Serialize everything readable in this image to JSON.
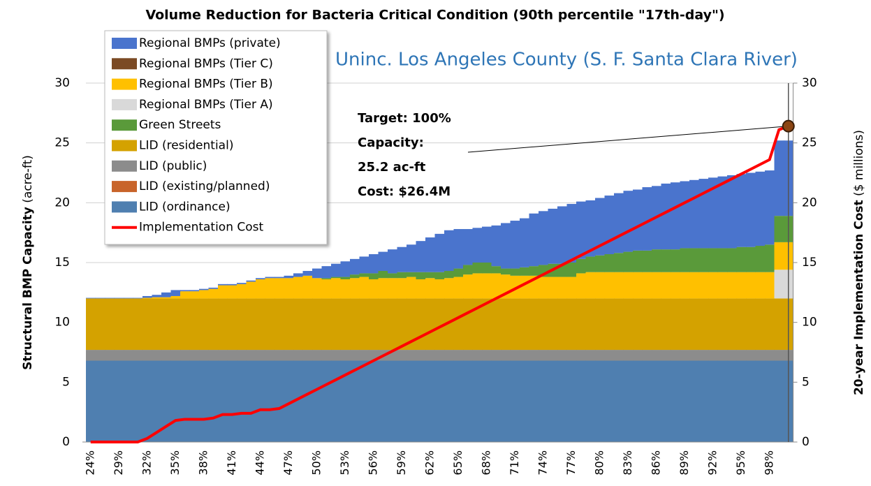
{
  "chart_data": {
    "type": "stacked-bar-line",
    "title": "Volume Reduction for Bacteria Critical Condition (90th percentile \"17th-day\")",
    "subtitle": "Uninc. Los Angeles County (S. F. Santa Clara River)",
    "y_label": "Structural BMP Capacity",
    "y_label_unit": "(acre-ft)",
    "y2_label": "20-year Implementation Cost",
    "y2_label_unit": "($ millions)",
    "annotations": [
      "Target: 100%",
      "Capacity:",
      "25.2 ac-ft",
      "Cost: $26.4M"
    ],
    "categories": [
      "24%",
      null,
      null,
      "29%",
      null,
      null,
      "32%",
      null,
      null,
      "35%",
      null,
      null,
      "38%",
      null,
      null,
      "41%",
      null,
      null,
      "44%",
      null,
      null,
      "47%",
      null,
      null,
      "50%",
      null,
      null,
      "53%",
      null,
      null,
      "56%",
      null,
      null,
      "59%",
      null,
      null,
      "62%",
      null,
      null,
      "65%",
      null,
      null,
      "68%",
      null,
      null,
      "71%",
      null,
      null,
      "74%",
      null,
      null,
      "77%",
      null,
      null,
      "80%",
      null,
      null,
      "83%",
      null,
      null,
      "86%",
      null,
      null,
      "89%",
      null,
      null,
      "92%",
      null,
      null,
      "95%",
      null,
      null,
      "98%",
      null,
      null
    ],
    "ylim": [
      0,
      30
    ],
    "yticks": [
      0,
      5,
      10,
      15,
      20,
      25,
      30
    ],
    "y2lim": [
      0,
      30
    ],
    "y2ticks": [
      0,
      5,
      10,
      15,
      20,
      25,
      30
    ],
    "grid": true,
    "legend": "upper left",
    "series": [
      {
        "name": "Regional BMPs (private)",
        "color": "#4a74cd",
        "values": [
          0.05,
          0.05,
          0.05,
          0.05,
          0.05,
          0.05,
          0.15,
          0.2,
          0.4,
          0.5,
          0.1,
          0.1,
          0.1,
          0.1,
          0.1,
          0.1,
          0.1,
          0.1,
          0.1,
          0.1,
          0.1,
          0.2,
          0.3,
          0.4,
          0.8,
          1.0,
          1.1,
          1.3,
          1.3,
          1.4,
          1.6,
          1.6,
          2.0,
          2.1,
          2.3,
          2.6,
          2.9,
          3.2,
          3.4,
          3.3,
          3.0,
          2.9,
          3.0,
          3.4,
          3.8,
          4.0,
          4.1,
          4.4,
          4.5,
          4.6,
          4.8,
          4.9,
          4.8,
          4.7,
          4.8,
          4.9,
          5.0,
          5.1,
          5.1,
          5.3,
          5.3,
          5.5,
          5.6,
          5.6,
          5.7,
          5.8,
          5.9,
          6.0,
          6.1,
          6.1,
          6.2,
          6.2,
          6.2,
          6.3,
          6.3
        ]
      },
      {
        "name": "Regional BMPs (Tier C)",
        "color": "#7b4a24",
        "values": [
          0,
          0,
          0,
          0,
          0,
          0,
          0,
          0,
          0,
          0,
          0,
          0,
          0,
          0,
          0,
          0,
          0,
          0,
          0,
          0,
          0,
          0,
          0,
          0,
          0,
          0,
          0,
          0,
          0,
          0,
          0,
          0,
          0,
          0,
          0,
          0,
          0,
          0,
          0,
          0,
          0,
          0,
          0,
          0,
          0,
          0,
          0,
          0,
          0,
          0,
          0,
          0,
          0,
          0,
          0,
          0,
          0,
          0,
          0,
          0,
          0,
          0,
          0,
          0,
          0,
          0,
          0,
          0,
          0,
          0,
          0,
          0,
          0,
          0,
          0
        ]
      },
      {
        "name": "Regional BMPs (Tier B)",
        "color": "#ffc000",
        "values": [
          0,
          0,
          0,
          0,
          0,
          0,
          0.05,
          0.1,
          0.1,
          0.2,
          0.6,
          0.6,
          0.7,
          0.8,
          1.1,
          1.1,
          1.2,
          1.4,
          1.6,
          1.7,
          1.7,
          1.7,
          1.8,
          1.9,
          1.7,
          1.6,
          1.7,
          1.6,
          1.7,
          1.8,
          1.6,
          1.7,
          1.7,
          1.7,
          1.8,
          1.6,
          1.7,
          1.6,
          1.7,
          1.8,
          2.0,
          2.1,
          2.1,
          2.1,
          2.0,
          1.9,
          1.9,
          1.9,
          1.8,
          1.8,
          1.8,
          1.8,
          2.1,
          2.2,
          2.2,
          2.2,
          2.2,
          2.2,
          2.2,
          2.2,
          2.2,
          2.2,
          2.2,
          2.2,
          2.2,
          2.2,
          2.2,
          2.2,
          2.2,
          2.2,
          2.2,
          2.2,
          2.2,
          2.3,
          2.3
        ]
      },
      {
        "name": "Regional BMPs (Tier A)",
        "color": "#d9d9d9",
        "values": [
          0,
          0,
          0,
          0,
          0,
          0,
          0,
          0,
          0,
          0,
          0,
          0,
          0,
          0,
          0,
          0,
          0,
          0,
          0,
          0,
          0,
          0,
          0,
          0,
          0,
          0,
          0,
          0,
          0,
          0,
          0,
          0,
          0,
          0,
          0,
          0,
          0,
          0,
          0,
          0,
          0,
          0,
          0,
          0,
          0,
          0,
          0,
          0,
          0,
          0,
          0,
          0,
          0,
          0,
          0,
          0,
          0,
          0,
          0,
          0,
          0,
          0,
          0,
          0,
          0,
          0,
          0,
          0,
          0,
          0,
          0,
          0,
          0,
          2.4,
          2.4
        ]
      },
      {
        "name": "Green Streets",
        "color": "#5a9a3a",
        "values": [
          0,
          0,
          0,
          0,
          0,
          0,
          0,
          0,
          0,
          0,
          0,
          0,
          0,
          0,
          0,
          0,
          0,
          0,
          0,
          0,
          0,
          0,
          0,
          0,
          0,
          0.1,
          0.1,
          0.2,
          0.3,
          0.3,
          0.5,
          0.6,
          0.4,
          0.5,
          0.4,
          0.6,
          0.5,
          0.6,
          0.6,
          0.7,
          0.8,
          0.9,
          0.9,
          0.6,
          0.5,
          0.6,
          0.7,
          0.8,
          1.0,
          1.1,
          1.1,
          1.2,
          1.2,
          1.3,
          1.4,
          1.5,
          1.6,
          1.7,
          1.8,
          1.8,
          1.9,
          1.9,
          1.9,
          2.0,
          2.0,
          2.0,
          2.0,
          2.0,
          2.0,
          2.1,
          2.1,
          2.2,
          2.3,
          2.2,
          2.2
        ]
      },
      {
        "name": "LID (residential)",
        "color": "#d4a200",
        "values": [
          4.3,
          4.3,
          4.3,
          4.3,
          4.3,
          4.3,
          4.3,
          4.3,
          4.3,
          4.3,
          4.3,
          4.3,
          4.3,
          4.3,
          4.3,
          4.3,
          4.3,
          4.3,
          4.3,
          4.3,
          4.3,
          4.3,
          4.3,
          4.3,
          4.3,
          4.3,
          4.3,
          4.3,
          4.3,
          4.3,
          4.3,
          4.3,
          4.3,
          4.3,
          4.3,
          4.3,
          4.3,
          4.3,
          4.3,
          4.3,
          4.3,
          4.3,
          4.3,
          4.3,
          4.3,
          4.3,
          4.3,
          4.3,
          4.3,
          4.3,
          4.3,
          4.3,
          4.3,
          4.3,
          4.3,
          4.3,
          4.3,
          4.3,
          4.3,
          4.3,
          4.3,
          4.3,
          4.3,
          4.3,
          4.3,
          4.3,
          4.3,
          4.3,
          4.3,
          4.3,
          4.3,
          4.3,
          4.3,
          4.3,
          4.3
        ]
      },
      {
        "name": "LID (public)",
        "color": "#8c8c8c",
        "values": [
          0.9,
          0.9,
          0.9,
          0.9,
          0.9,
          0.9,
          0.9,
          0.9,
          0.9,
          0.9,
          0.9,
          0.9,
          0.9,
          0.9,
          0.9,
          0.9,
          0.9,
          0.9,
          0.9,
          0.9,
          0.9,
          0.9,
          0.9,
          0.9,
          0.9,
          0.9,
          0.9,
          0.9,
          0.9,
          0.9,
          0.9,
          0.9,
          0.9,
          0.9,
          0.9,
          0.9,
          0.9,
          0.9,
          0.9,
          0.9,
          0.9,
          0.9,
          0.9,
          0.9,
          0.9,
          0.9,
          0.9,
          0.9,
          0.9,
          0.9,
          0.9,
          0.9,
          0.9,
          0.9,
          0.9,
          0.9,
          0.9,
          0.9,
          0.9,
          0.9,
          0.9,
          0.9,
          0.9,
          0.9,
          0.9,
          0.9,
          0.9,
          0.9,
          0.9,
          0.9,
          0.9,
          0.9,
          0.9,
          0.9,
          0.9
        ]
      },
      {
        "name": "LID (existing/planned)",
        "color": "#c8642a",
        "values": [
          0,
          0,
          0,
          0,
          0,
          0,
          0,
          0,
          0,
          0,
          0,
          0,
          0,
          0,
          0,
          0,
          0,
          0,
          0,
          0,
          0,
          0,
          0,
          0,
          0,
          0,
          0,
          0,
          0,
          0,
          0,
          0,
          0,
          0,
          0,
          0,
          0,
          0,
          0,
          0,
          0,
          0,
          0,
          0,
          0,
          0,
          0,
          0,
          0,
          0,
          0,
          0,
          0,
          0,
          0,
          0,
          0,
          0,
          0,
          0,
          0,
          0,
          0,
          0,
          0,
          0,
          0,
          0,
          0,
          0,
          0,
          0,
          0,
          0,
          0
        ]
      },
      {
        "name": "LID (ordinance)",
        "color": "#4f7fb0",
        "values": [
          6.8,
          6.8,
          6.8,
          6.8,
          6.8,
          6.8,
          6.8,
          6.8,
          6.8,
          6.8,
          6.8,
          6.8,
          6.8,
          6.8,
          6.8,
          6.8,
          6.8,
          6.8,
          6.8,
          6.8,
          6.8,
          6.8,
          6.8,
          6.8,
          6.8,
          6.8,
          6.8,
          6.8,
          6.8,
          6.8,
          6.8,
          6.8,
          6.8,
          6.8,
          6.8,
          6.8,
          6.8,
          6.8,
          6.8,
          6.8,
          6.8,
          6.8,
          6.8,
          6.8,
          6.8,
          6.8,
          6.8,
          6.8,
          6.8,
          6.8,
          6.8,
          6.8,
          6.8,
          6.8,
          6.8,
          6.8,
          6.8,
          6.8,
          6.8,
          6.8,
          6.8,
          6.8,
          6.8,
          6.8,
          6.8,
          6.8,
          6.8,
          6.8,
          6.8,
          6.8,
          6.8,
          6.8,
          6.8,
          6.8,
          6.8
        ]
      },
      {
        "name": "Implementation Cost",
        "color": "#ff0000",
        "axis": "y2",
        "type": "line",
        "values": [
          0,
          0,
          0,
          0,
          0,
          0,
          0.3,
          0.8,
          1.3,
          1.8,
          1.9,
          1.9,
          1.9,
          2.0,
          2.3,
          2.3,
          2.4,
          2.4,
          2.7,
          2.7,
          2.8,
          3.2,
          3.6,
          4.0,
          4.4,
          4.8,
          5.2,
          5.6,
          6.0,
          6.4,
          6.8,
          7.2,
          7.6,
          8.0,
          8.4,
          8.8,
          9.2,
          9.6,
          10.0,
          10.4,
          10.8,
          11.2,
          11.6,
          12.0,
          12.4,
          12.8,
          13.2,
          13.6,
          14.0,
          14.4,
          14.8,
          15.2,
          15.6,
          16.0,
          16.4,
          16.8,
          17.2,
          17.6,
          18.0,
          18.4,
          18.8,
          19.2,
          19.6,
          20.0,
          20.4,
          20.8,
          21.2,
          21.6,
          22.0,
          22.4,
          22.8,
          23.2,
          23.6,
          26.1,
          26.4
        ]
      }
    ]
  }
}
